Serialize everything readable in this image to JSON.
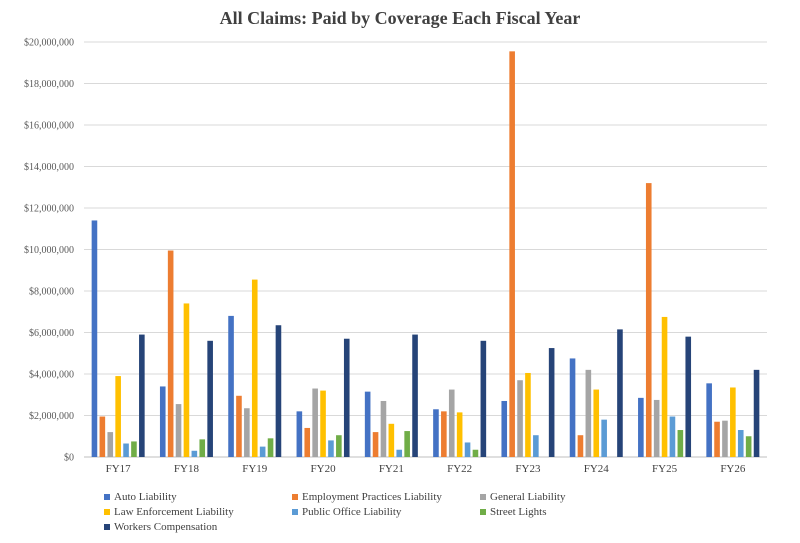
{
  "chart_data": {
    "type": "bar",
    "title": "All Claims: Paid by Coverage Each Fiscal Year",
    "xlabel": "",
    "ylabel": "",
    "ylim": [
      0,
      20000000
    ],
    "y_ticks": [
      "$0",
      "$2,000,000",
      "$4,000,000",
      "$6,000,000",
      "$8,000,000",
      "$10,000,000",
      "$12,000,000",
      "$14,000,000",
      "$16,000,000",
      "$18,000,000",
      "$20,000,000"
    ],
    "grid": true,
    "legend_position": "bottom",
    "categories": [
      "FY17",
      "FY18",
      "FY19",
      "FY20",
      "FY21",
      "FY22",
      "FY23",
      "FY24",
      "FY25",
      "FY26"
    ],
    "series": [
      {
        "name": "Auto Liability",
        "color": "#4472C4",
        "values": [
          11400000,
          3400000,
          6800000,
          2200000,
          3150000,
          2300000,
          2700000,
          4750000,
          2850000,
          3550000
        ]
      },
      {
        "name": "Employment Practices Liability",
        "color": "#ED7D31",
        "values": [
          1950000,
          9950000,
          2950000,
          1400000,
          1200000,
          2200000,
          19550000,
          1050000,
          13200000,
          1700000
        ]
      },
      {
        "name": "General Liability",
        "color": "#A5A5A5",
        "values": [
          1200000,
          2550000,
          2350000,
          3300000,
          2700000,
          3250000,
          3700000,
          4200000,
          2750000,
          1750000
        ]
      },
      {
        "name": "Law Enforcement Liability",
        "color": "#FFC000",
        "values": [
          3900000,
          7400000,
          8550000,
          3200000,
          1600000,
          2150000,
          4050000,
          3250000,
          6750000,
          3350000
        ]
      },
      {
        "name": "Public Office Liability",
        "color": "#5B9BD5",
        "values": [
          650000,
          300000,
          500000,
          800000,
          350000,
          700000,
          1050000,
          1800000,
          1950000,
          1300000
        ]
      },
      {
        "name": "Street Lights",
        "color": "#70AD47",
        "values": [
          750000,
          850000,
          900000,
          1050000,
          1250000,
          350000,
          0,
          0,
          1300000,
          1000000
        ]
      },
      {
        "name": "Workers Compensation",
        "color": "#264478",
        "values": [
          5900000,
          5600000,
          6350000,
          5700000,
          5900000,
          5600000,
          5250000,
          6150000,
          5800000,
          4200000
        ]
      }
    ]
  }
}
